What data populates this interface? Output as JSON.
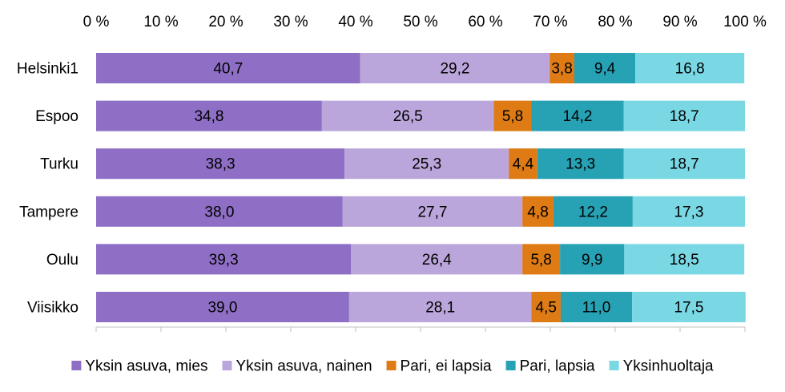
{
  "chart_data": {
    "type": "bar",
    "orientation": "horizontal",
    "stacked": "percent",
    "title": "",
    "xlabel": "",
    "ylabel": "",
    "xlim": [
      0,
      100
    ],
    "x_ticks": [
      "0 %",
      "10 %",
      "20 %",
      "30 %",
      "40 %",
      "50 %",
      "60 %",
      "70 %",
      "80 %",
      "90 %",
      "100 %"
    ],
    "x_axis_position": "top",
    "grid": false,
    "legend_position": "bottom",
    "categories": [
      "Helsinki1",
      "Espoo",
      "Turku",
      "Tampere",
      "Oulu",
      "Viisikko"
    ],
    "series": [
      {
        "name": "Yksin asuva, mies",
        "color": "#8e6fc5",
        "values": [
          40.7,
          34.8,
          38.3,
          38.0,
          39.3,
          39.0
        ],
        "labels": [
          "40,7",
          "34,8",
          "38,3",
          "38,0",
          "39,3",
          "39,0"
        ]
      },
      {
        "name": "Yksin asuva, nainen",
        "color": "#bba6dc",
        "values": [
          29.2,
          26.5,
          25.3,
          27.7,
          26.4,
          28.1
        ],
        "labels": [
          "29,2",
          "26,5",
          "25,3",
          "27,7",
          "26,4",
          "28,1"
        ]
      },
      {
        "name": "Pari, ei lapsia",
        "color": "#de7b15",
        "values": [
          3.8,
          5.8,
          4.4,
          4.8,
          5.8,
          4.5
        ],
        "labels": [
          "3,8",
          "5,8",
          "4,4",
          "4,8",
          "5,8",
          "4,5"
        ]
      },
      {
        "name": "Pari, lapsia",
        "color": "#27a1b4",
        "values": [
          9.4,
          14.2,
          13.3,
          12.2,
          9.9,
          11.0
        ],
        "labels": [
          "9,4",
          "14,2",
          "13,3",
          "12,2",
          "9,9",
          "11,0"
        ]
      },
      {
        "name": "Yksinhuoltaja",
        "color": "#79d8e4",
        "values": [
          16.8,
          18.7,
          18.7,
          17.3,
          18.5,
          17.5
        ],
        "labels": [
          "16,8",
          "18,7",
          "18,7",
          "17,3",
          "18,5",
          "17,5"
        ]
      }
    ]
  }
}
